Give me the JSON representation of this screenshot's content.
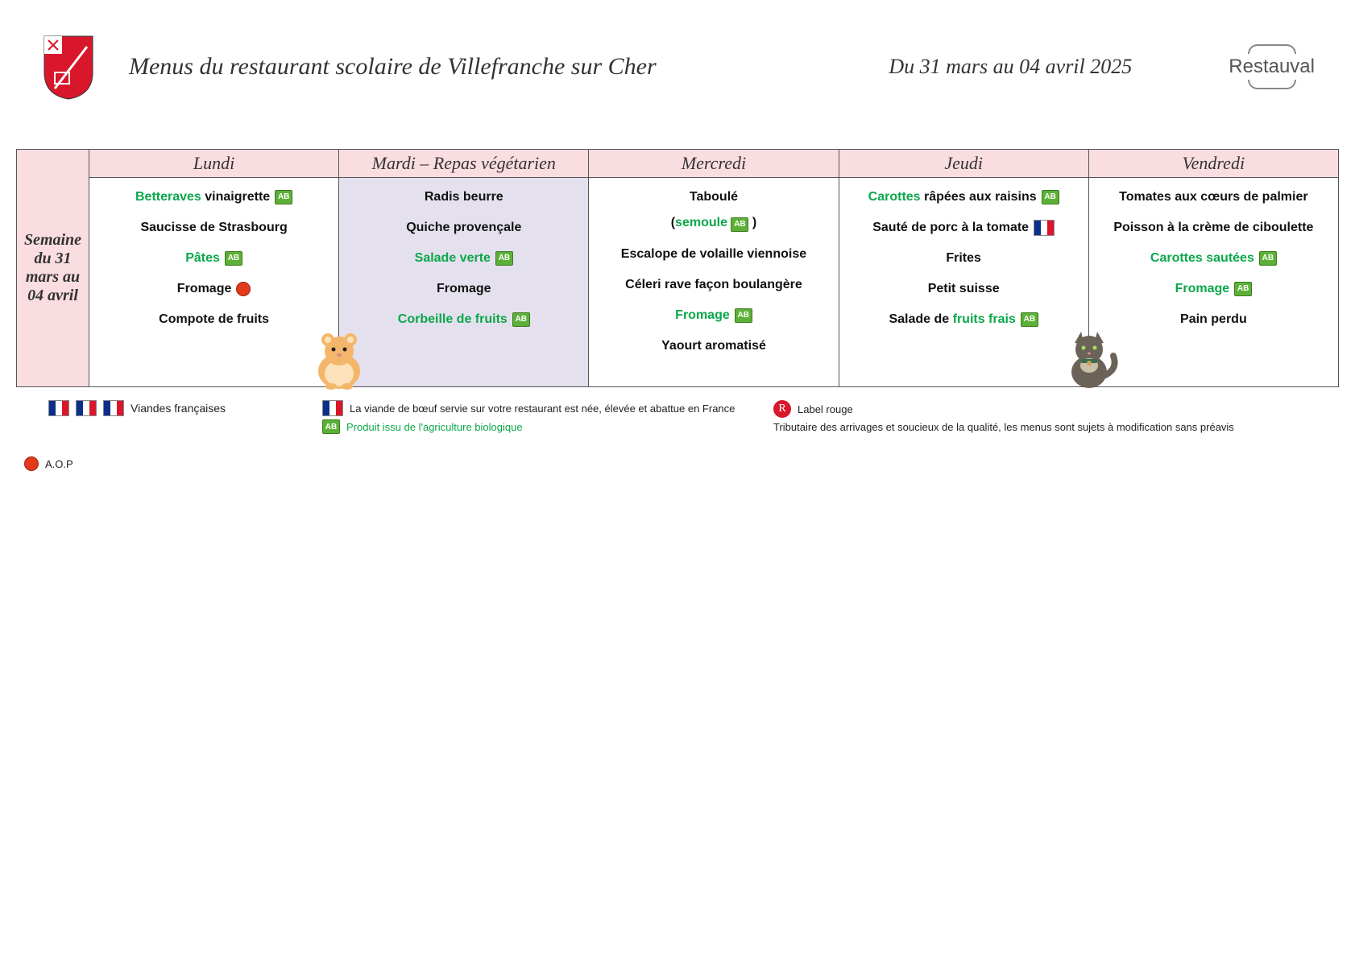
{
  "header": {
    "title": "Menus du restaurant scolaire de Villefranche sur Cher",
    "date_range": "Du 31 mars au 04 avril 2025",
    "brand": "Restauval"
  },
  "week_label": "Semaine du 31 mars au 04 avril",
  "days": [
    {
      "name": "Lundi",
      "veg": false
    },
    {
      "name": "Mardi – Repas végétarien",
      "veg": true
    },
    {
      "name": "Mercredi",
      "veg": false
    },
    {
      "name": "Jeudi",
      "veg": false
    },
    {
      "name": "Vendredi",
      "veg": false
    }
  ],
  "menu": {
    "lundi": [
      {
        "parts": [
          {
            "t": "Betteraves",
            "green": true
          },
          {
            "t": " vinaigrette"
          }
        ],
        "ab": true
      },
      {
        "parts": [
          {
            "t": "Saucisse de Strasbourg"
          }
        ]
      },
      {
        "parts": [
          {
            "t": "Pâtes",
            "green": true
          }
        ],
        "ab": true
      },
      {
        "parts": [
          {
            "t": "Fromage"
          }
        ],
        "aop": true
      },
      {
        "parts": [
          {
            "t": "Compote de fruits"
          }
        ]
      }
    ],
    "mardi": [
      {
        "parts": [
          {
            "t": "Radis beurre"
          }
        ]
      },
      {
        "parts": [
          {
            "t": "Quiche provençale"
          }
        ]
      },
      {
        "parts": [
          {
            "t": "Salade verte",
            "green": true
          }
        ],
        "ab": true
      },
      {
        "parts": [
          {
            "t": "Fromage"
          }
        ]
      },
      {
        "parts": [
          {
            "t": "Corbeille de fruits",
            "green": true
          }
        ],
        "ab": true
      }
    ],
    "mercredi": [
      {
        "parts": [
          {
            "t": "Taboulé"
          }
        ],
        "sub": {
          "pre": "(",
          "mid": "semoule",
          "green": true,
          "ab": true,
          "post": " )"
        }
      },
      {
        "parts": [
          {
            "t": "Escalope de volaille viennoise"
          }
        ]
      },
      {
        "parts": [
          {
            "t": "Céleri rave façon boulangère"
          }
        ]
      },
      {
        "parts": [
          {
            "t": "Fromage",
            "green": true
          }
        ],
        "ab": true
      },
      {
        "parts": [
          {
            "t": "Yaourt aromatisé"
          }
        ]
      }
    ],
    "jeudi": [
      {
        "parts": [
          {
            "t": "Carottes",
            "green": true
          },
          {
            "t": " râpées aux raisins"
          }
        ],
        "ab": true
      },
      {
        "parts": [
          {
            "t": "Sauté de porc à la tomate"
          }
        ],
        "fr": true
      },
      {
        "parts": [
          {
            "t": "Frites"
          }
        ]
      },
      {
        "parts": [
          {
            "t": "Petit suisse"
          }
        ]
      },
      {
        "parts": [
          {
            "t": "Salade de "
          },
          {
            "t": "fruits frais",
            "green": true
          }
        ],
        "ab": true
      }
    ],
    "vendredi": [
      {
        "parts": [
          {
            "t": "Tomates aux cœurs de palmier"
          }
        ]
      },
      {
        "parts": [
          {
            "t": "Poisson à la crème de ciboulette"
          }
        ]
      },
      {
        "parts": [
          {
            "t": "Carottes sautées",
            "green": true
          }
        ],
        "ab": true
      },
      {
        "parts": [
          {
            "t": "Fromage",
            "green": true
          }
        ],
        "ab": true
      },
      {
        "parts": [
          {
            "t": "Pain perdu"
          }
        ]
      }
    ]
  },
  "legend": {
    "viandes": "Viandes françaises",
    "beef": "La viande de bœuf servie sur votre restaurant est née, élevée et abattue en France",
    "bio": "Produit issu de l'agriculture biologique",
    "label_rouge": "Label rouge",
    "disclaimer": "Tributaire des arrivages et soucieux de la qualité, les menus sont sujets à modification sans préavis",
    "aop": "A.O.P"
  },
  "colors": {
    "header_pink": "#fadde0",
    "veg_bg": "#e5e0ee",
    "green_text": "#0aa84a",
    "ab_bg": "#5cb037"
  }
}
